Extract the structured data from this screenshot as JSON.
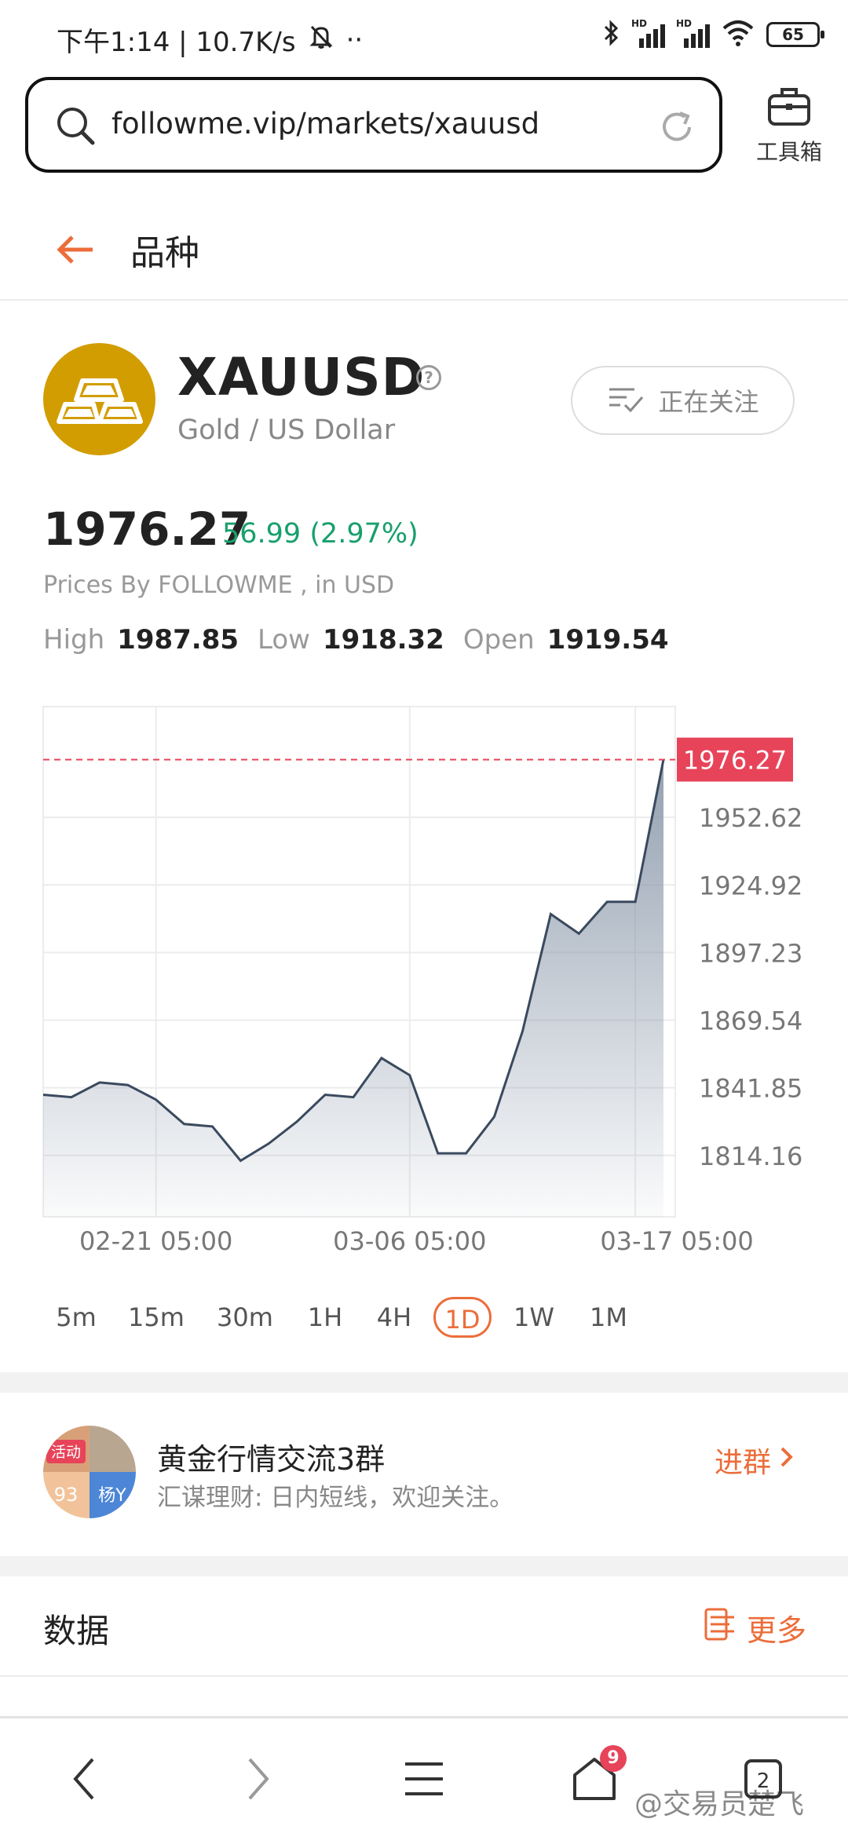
{
  "status_bar": {
    "time_speed": "下午1:14 | 10.7K/s",
    "more": "··",
    "signal_1": "HD",
    "signal_2": "HD",
    "battery": "65"
  },
  "browser": {
    "url": "followme.vip/markets/xauusd",
    "toolbox_label": "工具箱"
  },
  "header": {
    "title": "品种"
  },
  "instrument": {
    "symbol": "XAUUSD",
    "help": "?",
    "name": "Gold / US Dollar",
    "watch_label": "正在关注",
    "price": "1976.27",
    "change": "56.99 (2.97%)",
    "source": "Prices By FOLLOWME , in USD",
    "high_label": "High",
    "high": "1987.85",
    "low_label": "Low",
    "low": "1918.32",
    "open_label": "Open",
    "open": "1919.54"
  },
  "chart_data": {
    "type": "area",
    "current_price_label": "1976.27",
    "current_price": 1976.27,
    "y_ticks": [
      "1952.62",
      "1924.92",
      "1897.23",
      "1869.54",
      "1841.85",
      "1814.16"
    ],
    "y_tick_values": [
      1952.62,
      1924.92,
      1897.23,
      1869.54,
      1841.85,
      1814.16
    ],
    "x_ticks": [
      "02-21 05:00",
      "03-06 05:00",
      "03-17 05:00"
    ],
    "ylim": [
      1789,
      1998
    ],
    "values": [
      1839,
      1838,
      1844,
      1843,
      1837,
      1827,
      1826,
      1812,
      1819,
      1828,
      1839,
      1838,
      1854,
      1847,
      1815,
      1815,
      1830,
      1865,
      1913,
      1905,
      1918,
      1918,
      1976.27
    ],
    "grid": true,
    "colors": {
      "line": "#3a4a5e",
      "fill_top": "#8896a8",
      "marker": "#e7445a",
      "grid": "#ececec"
    }
  },
  "periods": [
    {
      "label": "5m",
      "active": false
    },
    {
      "label": "15m",
      "active": false
    },
    {
      "label": "30m",
      "active": false
    },
    {
      "label": "1H",
      "active": false
    },
    {
      "label": "4H",
      "active": false
    },
    {
      "label": "1D",
      "active": true
    },
    {
      "label": "1W",
      "active": false
    },
    {
      "label": "1M",
      "active": false
    }
  ],
  "group": {
    "avatar_tag": "活动",
    "avatar_num": "93",
    "avatar_user": "杨Y",
    "name": "黄金行情交流3群",
    "desc": "汇谋理财: 日内短线，欢迎关注。",
    "join_label": "进群"
  },
  "data_section": {
    "title": "数据",
    "more_label": "更多"
  },
  "bottom_nav": {
    "badge": "9",
    "tabs_count": "2",
    "watermark": "@交易员楚飞"
  },
  "accent_color": "#ec6d3a"
}
